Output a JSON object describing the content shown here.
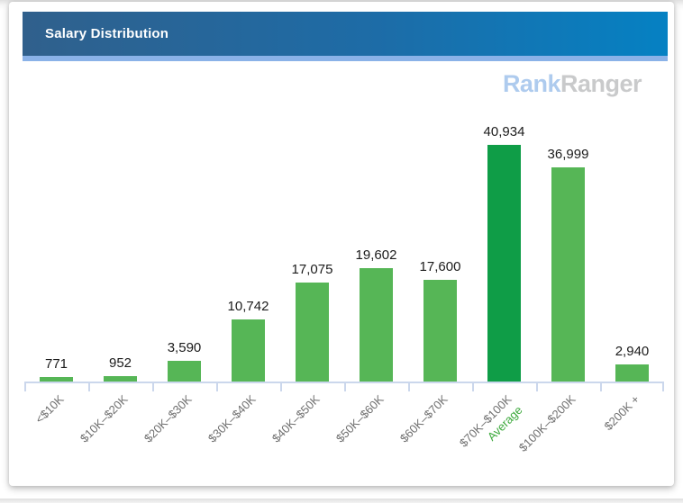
{
  "panel": {
    "title": "Salary Distribution"
  },
  "logo": {
    "part1": "Rank",
    "part2": "Ranger"
  },
  "chart_data": {
    "type": "bar",
    "title": "Salary Distribution",
    "categories": [
      "<$10K",
      "$10K–$20K",
      "$20K–$30K",
      "$30K–$40K",
      "$40K–$50K",
      "$50K–$60K",
      "$60K–$70K",
      "$70K–$100K",
      "$100K–$200K",
      "$200K +"
    ],
    "values": [
      771,
      952,
      3590,
      10742,
      17075,
      19602,
      17600,
      40934,
      36999,
      2940
    ],
    "value_labels": [
      "771",
      "952",
      "3,590",
      "10,742",
      "17,075",
      "19,602",
      "17,600",
      "40,934",
      "36,999",
      "2,940"
    ],
    "highlight_index": 7,
    "sub_labels": {
      "7": "Average"
    },
    "xlabel": "",
    "ylabel": "",
    "ylim": [
      0,
      43000
    ],
    "grid": false,
    "legend": false,
    "bar_color": "#56B656",
    "highlight_bar_color": "#0F9D47"
  },
  "colors": {
    "header_gradient_left": "#30608C",
    "header_gradient_right": "#0581C3",
    "header_stripe": "#8AB2E8",
    "logo_rank": "#AECBEE",
    "logo_ranger": "#C9CACB",
    "bar_green": "#56B656",
    "bar_dark_green": "#0F9D47",
    "axis": "#CBD7EC",
    "value_label_text": "#1B1B1B",
    "axis_label_text": "#6F6F6F",
    "average_label": "#3CA93C"
  }
}
